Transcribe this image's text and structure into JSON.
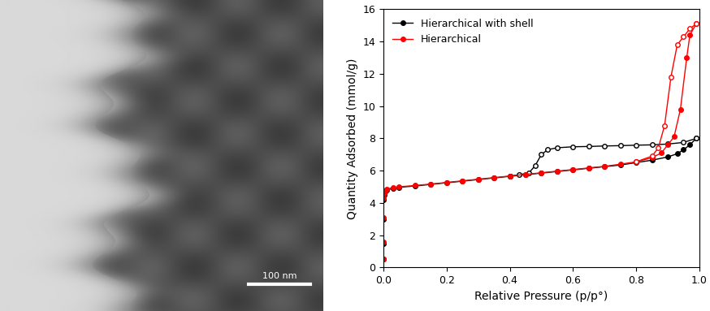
{
  "micrograph": {
    "scale_bar_label": "100 nm"
  },
  "chart_data": {
    "type": "line",
    "xlabel": "Relative Pressure (p/p°)",
    "ylabel": "Quantity Adsorbed (mmol/g)",
    "xlim": [
      0.0,
      1.0
    ],
    "xticks": [
      0.0,
      0.2,
      0.4,
      0.6,
      0.8,
      1.0
    ],
    "ylim": [
      0,
      16
    ],
    "yticks": [
      0,
      2,
      4,
      6,
      8,
      10,
      12,
      14,
      16
    ],
    "grid": false,
    "legend": "upper left",
    "series": [
      {
        "name": "Hierarchical with shell",
        "color": "#000000",
        "marker": "o",
        "adsorption": {
          "x": [
            0.0001,
            0.0003,
            0.0006,
            0.001,
            0.002,
            0.005,
            0.01,
            0.03,
            0.05,
            0.1,
            0.15,
            0.2,
            0.25,
            0.3,
            0.35,
            0.4,
            0.45,
            0.5,
            0.55,
            0.6,
            0.65,
            0.7,
            0.75,
            0.8,
            0.85,
            0.9,
            0.93,
            0.95,
            0.97,
            0.99
          ],
          "values": [
            0.5,
            1.5,
            3.0,
            4.2,
            4.5,
            4.7,
            4.8,
            4.9,
            4.97,
            5.05,
            5.15,
            5.25,
            5.35,
            5.45,
            5.55,
            5.65,
            5.75,
            5.85,
            5.95,
            6.05,
            6.15,
            6.25,
            6.35,
            6.5,
            6.65,
            6.85,
            7.05,
            7.3,
            7.6,
            8.0
          ]
        },
        "desorption": {
          "x": [
            0.99,
            0.95,
            0.9,
            0.85,
            0.8,
            0.75,
            0.7,
            0.65,
            0.6,
            0.55,
            0.52,
            0.5,
            0.48,
            0.46,
            0.43,
            0.4
          ],
          "values": [
            8.0,
            7.75,
            7.65,
            7.6,
            7.58,
            7.55,
            7.53,
            7.5,
            7.48,
            7.42,
            7.3,
            7.0,
            6.3,
            5.85,
            5.75,
            5.65
          ]
        }
      },
      {
        "name": "Hierarchical",
        "color": "#ff0000",
        "marker": "o",
        "adsorption": {
          "x": [
            0.0001,
            0.0003,
            0.0006,
            0.001,
            0.002,
            0.005,
            0.01,
            0.03,
            0.05,
            0.1,
            0.15,
            0.2,
            0.25,
            0.3,
            0.35,
            0.4,
            0.45,
            0.5,
            0.55,
            0.6,
            0.65,
            0.7,
            0.75,
            0.8,
            0.85,
            0.88,
            0.9,
            0.92,
            0.94,
            0.96,
            0.97,
            0.99
          ],
          "values": [
            0.5,
            1.6,
            3.1,
            4.3,
            4.6,
            4.75,
            4.85,
            4.95,
            5.0,
            5.08,
            5.17,
            5.27,
            5.37,
            5.47,
            5.57,
            5.67,
            5.77,
            5.87,
            5.97,
            6.07,
            6.17,
            6.27,
            6.4,
            6.55,
            6.8,
            7.1,
            7.6,
            8.1,
            9.8,
            13.0,
            14.4,
            15.1
          ]
        },
        "desorption": {
          "x": [
            0.99,
            0.97,
            0.95,
            0.93,
            0.91,
            0.89,
            0.87,
            0.85,
            0.8
          ],
          "values": [
            15.1,
            14.8,
            14.3,
            13.8,
            11.8,
            8.8,
            7.4,
            6.9,
            6.55
          ]
        }
      }
    ]
  }
}
